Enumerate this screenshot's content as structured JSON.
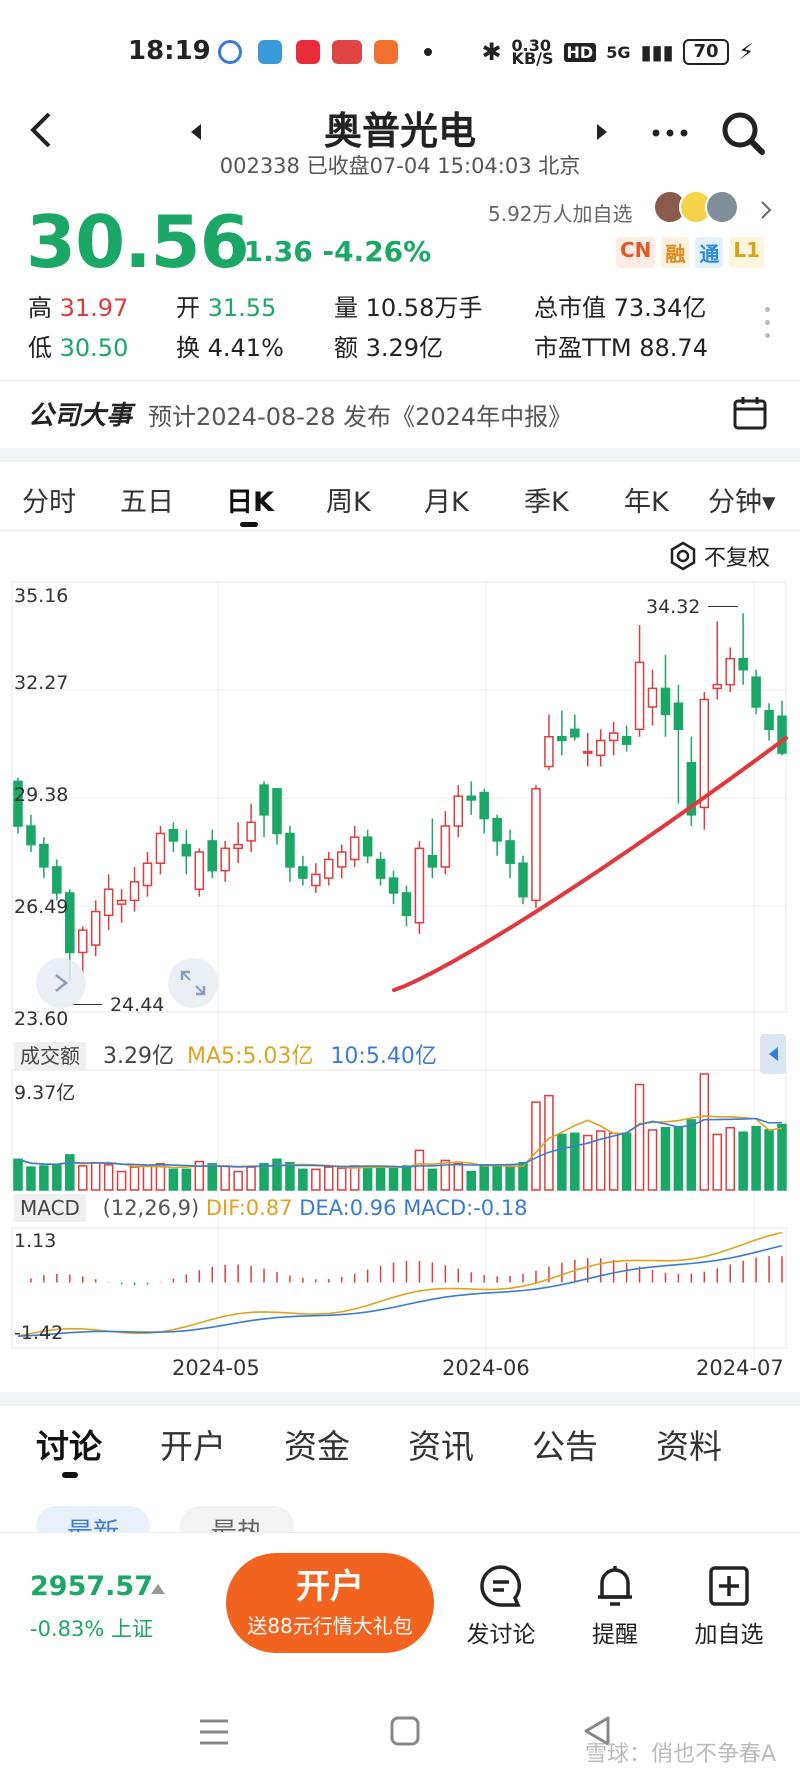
{
  "status_bar": {
    "time": "18:19",
    "net_speed": "0.30\nKB/S",
    "hd": "HD",
    "signal": "5G",
    "battery": "70"
  },
  "header": {
    "title": "奥普光电",
    "subtitle": "002338 已收盘07-04 15:04:03 北京"
  },
  "quote": {
    "price": "30.56",
    "change": "-1.36 -4.26%",
    "follow_text": "5.92万人加自选",
    "badges": [
      "CN",
      "融",
      "通",
      "L1"
    ],
    "high_label": "高",
    "high": "31.97",
    "low_label": "低",
    "low": "30.50",
    "open_label": "开",
    "open": "31.55",
    "turnover_label": "换",
    "turnover": "4.41%",
    "volume_label": "量",
    "volume": "10.58万手",
    "amount_label": "额",
    "amount": "3.29亿",
    "mktcap_label": "总市值",
    "mktcap": "73.34亿",
    "pe_label": "市盈TTM",
    "pe": "88.74"
  },
  "event": {
    "title": "公司大事",
    "text": "预计2024-08-28 发布《2024年中报》"
  },
  "period_tabs": [
    "分时",
    "五日",
    "日K",
    "周K",
    "月K",
    "季K",
    "年K",
    "分钟▾"
  ],
  "active_period": "日K",
  "kline": {
    "adjust_label": "不复权",
    "y_labels": [
      "35.16",
      "32.27",
      "29.38",
      "26.49",
      "23.60"
    ],
    "max_label": "34.32",
    "min_label": "24.44"
  },
  "volume_panel": {
    "tag": "成交额",
    "value": "3.29亿",
    "ma5": "MA5:5.03亿",
    "ma10": "10:5.40亿",
    "max": "9.37亿"
  },
  "macd_panel": {
    "tag": "MACD",
    "params": "(12,26,9)",
    "dif": "DIF:0.87",
    "dea": "DEA:0.96",
    "macd": "MACD:-0.18",
    "top": "1.13",
    "bottom": "-1.42"
  },
  "x_dates": [
    "2024-05",
    "2024-06",
    "2024-07"
  ],
  "bottom_tabs": [
    "讨论",
    "开户",
    "资金",
    "资讯",
    "公告",
    "资料"
  ],
  "sort_chips": [
    "最新",
    "最热"
  ],
  "footer": {
    "index_value": "2957.57",
    "index_change": "-0.83% 上证",
    "open_account": "开户",
    "open_account_sub": "送88元行情大礼包",
    "discuss": "发讨论",
    "remind": "提醒",
    "add_watch": "加自选"
  },
  "watermark": "雪球：俏也不争春A",
  "colors": {
    "up": "#e03c3c",
    "down": "#1ba766",
    "accent": "#f2631f",
    "ma5": "#e0a21f",
    "ma10": "#3a7bd5"
  }
}
